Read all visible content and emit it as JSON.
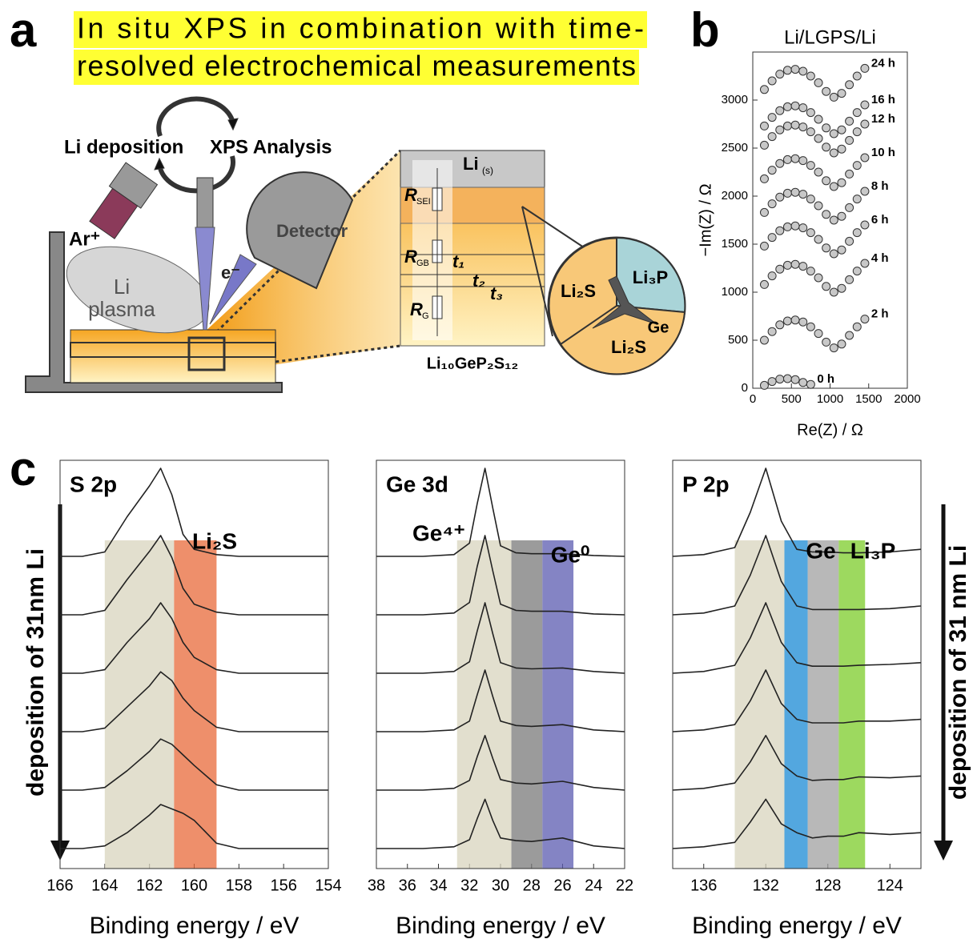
{
  "panel_labels": [
    "a",
    "b",
    "c"
  ],
  "diagram": {
    "title_lines": [
      "In situ XPS in combination with time-",
      "resolved electrochemical measurements"
    ],
    "cycle": [
      "Li deposition",
      "XPS Analysis"
    ],
    "ar": "Ar⁺",
    "detector": "Detector",
    "electron": "e⁻",
    "plasma": [
      "Li",
      "plasma"
    ],
    "li_s": [
      "Li",
      "(s)"
    ],
    "resistors": [
      [
        "R",
        "SEI"
      ],
      [
        "R",
        "GB"
      ],
      [
        "R",
        "G"
      ]
    ],
    "times": [
      "t₁",
      "t₂",
      "t₃"
    ],
    "electrolyte": "Li₁₀GeP₂S₁₂",
    "phases": [
      "Li₂S",
      "Li₃P",
      "Ge",
      "Li₂S"
    ]
  },
  "side_labels": [
    "deposition of 31nm Li",
    "deposition of 31 nm Li"
  ],
  "chart_data": [
    {
      "type": "scatter",
      "title": "Li/LGPS/Li",
      "x_label": "Re(Z) / Ω",
      "y_label": "−Im(Z) / Ω",
      "xlim": [
        0,
        2000
      ],
      "xticks": [
        0,
        500,
        1000,
        1500,
        2000
      ],
      "ylim": [
        0,
        3500
      ],
      "yticks": [
        0,
        500,
        1000,
        1500,
        2000,
        2500,
        3000
      ],
      "color": "#c8c8c8",
      "x": [
        150,
        250,
        350,
        450,
        550,
        650,
        750,
        850,
        950,
        1050,
        1150,
        1250,
        1350,
        1450
      ],
      "series": [
        {
          "name": "0 h",
          "values": [
            30,
            70,
            95,
            100,
            90,
            60,
            40,
            null,
            null,
            null,
            null,
            null,
            null,
            null
          ]
        },
        {
          "name": "2 h",
          "values": [
            500,
            590,
            660,
            700,
            710,
            690,
            640,
            570,
            480,
            420,
            460,
            550,
            640,
            720
          ]
        },
        {
          "name": "4 h",
          "values": [
            1080,
            1170,
            1240,
            1280,
            1290,
            1270,
            1220,
            1150,
            1060,
            1000,
            1040,
            1130,
            1220,
            1300
          ]
        },
        {
          "name": "6 h",
          "values": [
            1480,
            1570,
            1640,
            1680,
            1690,
            1670,
            1620,
            1550,
            1460,
            1400,
            1440,
            1530,
            1620,
            1700
          ]
        },
        {
          "name": "8 h",
          "values": [
            1830,
            1920,
            1990,
            2030,
            2040,
            2020,
            1970,
            1900,
            1810,
            1750,
            1790,
            1880,
            1970,
            2050
          ]
        },
        {
          "name": "10 h",
          "values": [
            2180,
            2270,
            2340,
            2380,
            2390,
            2370,
            2320,
            2250,
            2160,
            2100,
            2140,
            2230,
            2320,
            2400
          ]
        },
        {
          "name": "12 h",
          "values": [
            2530,
            2620,
            2690,
            2730,
            2740,
            2720,
            2670,
            2600,
            2510,
            2450,
            2490,
            2580,
            2670,
            2750
          ]
        },
        {
          "name": "16 h",
          "values": [
            2730,
            2820,
            2890,
            2930,
            2940,
            2920,
            2870,
            2800,
            2710,
            2650,
            2690,
            2780,
            2870,
            2950
          ]
        },
        {
          "name": "24 h",
          "values": [
            3110,
            3200,
            3270,
            3310,
            3320,
            3300,
            3250,
            3180,
            3090,
            3030,
            3070,
            3160,
            3250,
            3330
          ]
        }
      ]
    },
    {
      "type": "line",
      "title": "S 2p",
      "x_label": "Binding energy / eV",
      "annotations": [
        "Li₂S"
      ],
      "xlim": [
        166,
        154
      ],
      "xticks": [
        166,
        164,
        162,
        160,
        158,
        156,
        154
      ],
      "color": "#222222",
      "bands": [
        {
          "x": [
            164,
            160.9
          ],
          "color": "#d8d4bd"
        },
        {
          "x": [
            160.9,
            159
          ],
          "color": "#e8693a"
        }
      ],
      "x": [
        166,
        165,
        164,
        163,
        162,
        161.5,
        161,
        160.5,
        160,
        159,
        158,
        156,
        154
      ],
      "series": [
        {
          "values": [
            0,
            0,
            5,
            45,
            80,
            100,
            70,
            25,
            8,
            2,
            0,
            0,
            0
          ]
        },
        {
          "values": [
            0,
            0,
            5,
            40,
            72,
            90,
            65,
            30,
            12,
            3,
            0,
            0,
            0
          ]
        },
        {
          "values": [
            0,
            0,
            4,
            35,
            62,
            80,
            62,
            35,
            18,
            4,
            0,
            0,
            0
          ]
        },
        {
          "values": [
            0,
            0,
            4,
            28,
            52,
            68,
            58,
            38,
            24,
            5,
            0,
            0,
            0
          ]
        },
        {
          "values": [
            0,
            0,
            3,
            22,
            44,
            58,
            52,
            40,
            28,
            6,
            0,
            0,
            0
          ]
        },
        {
          "values": [
            0,
            0,
            3,
            18,
            38,
            50,
            45,
            40,
            32,
            6,
            0,
            0,
            0
          ]
        }
      ]
    },
    {
      "type": "line",
      "title": "Ge 3d",
      "x_label": "Binding energy / eV",
      "annotations": [
        "Ge⁴⁺",
        "Ge⁰"
      ],
      "xlim": [
        38,
        22
      ],
      "xticks": [
        38,
        36,
        34,
        32,
        30,
        28,
        26,
        24,
        22
      ],
      "color": "#222222",
      "bands": [
        {
          "x": [
            32.8,
            29.3
          ],
          "color": "#d8d4bd"
        },
        {
          "x": [
            29.3,
            27.3
          ],
          "color": "#7a7a7a"
        },
        {
          "x": [
            27.3,
            25.3
          ],
          "color": "#5b5bb0"
        }
      ],
      "x": [
        38,
        35,
        33,
        32,
        31.5,
        31,
        30.5,
        30,
        29,
        28,
        26,
        24,
        22
      ],
      "series": [
        {
          "values": [
            0,
            0,
            2,
            15,
            60,
            100,
            55,
            12,
            4,
            3,
            3,
            1,
            0
          ]
        },
        {
          "values": [
            0,
            0,
            2,
            14,
            55,
            90,
            50,
            12,
            5,
            4,
            4,
            1,
            0
          ]
        },
        {
          "values": [
            0,
            0,
            2,
            13,
            48,
            80,
            45,
            12,
            6,
            5,
            6,
            2,
            0
          ]
        },
        {
          "values": [
            0,
            0,
            2,
            12,
            42,
            70,
            40,
            12,
            7,
            6,
            8,
            2,
            0
          ]
        },
        {
          "values": [
            0,
            0,
            2,
            11,
            38,
            62,
            36,
            12,
            8,
            7,
            10,
            3,
            0
          ]
        },
        {
          "values": [
            0,
            0,
            2,
            10,
            34,
            56,
            32,
            12,
            9,
            8,
            12,
            3,
            0
          ]
        }
      ]
    },
    {
      "type": "line",
      "title": "P 2p",
      "x_label": "Binding energy / eV",
      "annotations": [
        "Ge",
        "Li₃P"
      ],
      "xlim": [
        138,
        122
      ],
      "xticks": [
        136,
        132,
        128,
        124
      ],
      "color": "#222222",
      "bands": [
        {
          "x": [
            134,
            130.8
          ],
          "color": "#d8d4bd"
        },
        {
          "x": [
            130.8,
            129.3
          ],
          "color": "#1a8ad4"
        },
        {
          "x": [
            129.3,
            127.3
          ],
          "color": "#a0a0a0"
        },
        {
          "x": [
            127.3,
            125.6
          ],
          "color": "#7ccc2a"
        }
      ],
      "x": [
        138,
        136,
        134,
        133,
        132,
        131,
        130,
        129,
        128,
        127,
        126,
        124,
        122
      ],
      "series": [
        {
          "values": [
            0,
            2,
            10,
            50,
            100,
            40,
            8,
            5,
            5,
            4,
            4,
            5,
            8
          ]
        },
        {
          "values": [
            0,
            2,
            10,
            45,
            90,
            38,
            10,
            6,
            6,
            6,
            6,
            7,
            10
          ]
        },
        {
          "values": [
            0,
            2,
            9,
            40,
            80,
            35,
            12,
            8,
            8,
            8,
            9,
            10,
            12
          ]
        },
        {
          "values": [
            0,
            2,
            8,
            35,
            70,
            32,
            14,
            10,
            10,
            10,
            12,
            12,
            14
          ]
        },
        {
          "values": [
            0,
            2,
            8,
            32,
            62,
            30,
            16,
            11,
            12,
            12,
            15,
            14,
            16
          ]
        },
        {
          "values": [
            0,
            2,
            7,
            30,
            56,
            28,
            18,
            12,
            14,
            14,
            18,
            16,
            18
          ]
        }
      ]
    }
  ]
}
